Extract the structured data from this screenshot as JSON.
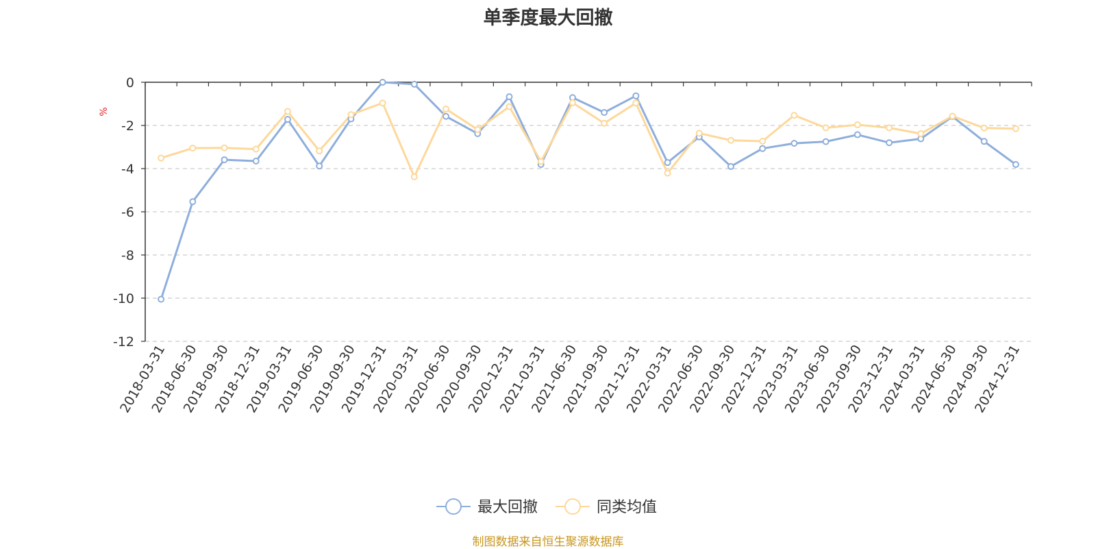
{
  "chart_data": {
    "type": "line",
    "title": "单季度最大回撤",
    "ylabel": "%",
    "ylim": [
      -12,
      0
    ],
    "yticks": [
      0,
      -2,
      -4,
      -6,
      -8,
      -10,
      -12
    ],
    "grid": true,
    "legend_position": "bottom-center",
    "categories": [
      "2018-03-31",
      "2018-06-30",
      "2018-09-30",
      "2018-12-31",
      "2019-03-31",
      "2019-06-30",
      "2019-09-30",
      "2019-12-31",
      "2020-03-31",
      "2020-06-30",
      "2020-09-30",
      "2020-12-31",
      "2021-03-31",
      "2021-06-30",
      "2021-09-30",
      "2021-12-31",
      "2022-03-31",
      "2022-06-30",
      "2022-09-30",
      "2022-12-31",
      "2023-03-31",
      "2023-06-30",
      "2023-09-30",
      "2023-12-31",
      "2024-03-31",
      "2024-06-30",
      "2024-09-30",
      "2024-12-31"
    ],
    "series": [
      {
        "name": "最大回撤",
        "color": "#8eaedb",
        "values": [
          -10.05,
          -5.53,
          -3.59,
          -3.65,
          -1.72,
          -3.88,
          -1.7,
          0.0,
          -0.09,
          -1.58,
          -2.38,
          -0.67,
          -3.81,
          -0.71,
          -1.4,
          -0.63,
          -3.72,
          -2.53,
          -3.9,
          -3.07,
          -2.83,
          -2.75,
          -2.43,
          -2.8,
          -2.62,
          -1.59,
          -2.74,
          -3.81
        ]
      },
      {
        "name": "同类均值",
        "color": "#fdd89a",
        "values": [
          -3.51,
          -3.05,
          -3.04,
          -3.1,
          -1.35,
          -3.18,
          -1.5,
          -0.96,
          -4.38,
          -1.24,
          -2.19,
          -1.13,
          -3.67,
          -0.95,
          -1.9,
          -0.96,
          -4.21,
          -2.36,
          -2.69,
          -2.73,
          -1.53,
          -2.11,
          -1.97,
          -2.11,
          -2.38,
          -1.57,
          -2.12,
          -2.15
        ]
      }
    ]
  },
  "footer": "制图数据来自恒生聚源数据库"
}
